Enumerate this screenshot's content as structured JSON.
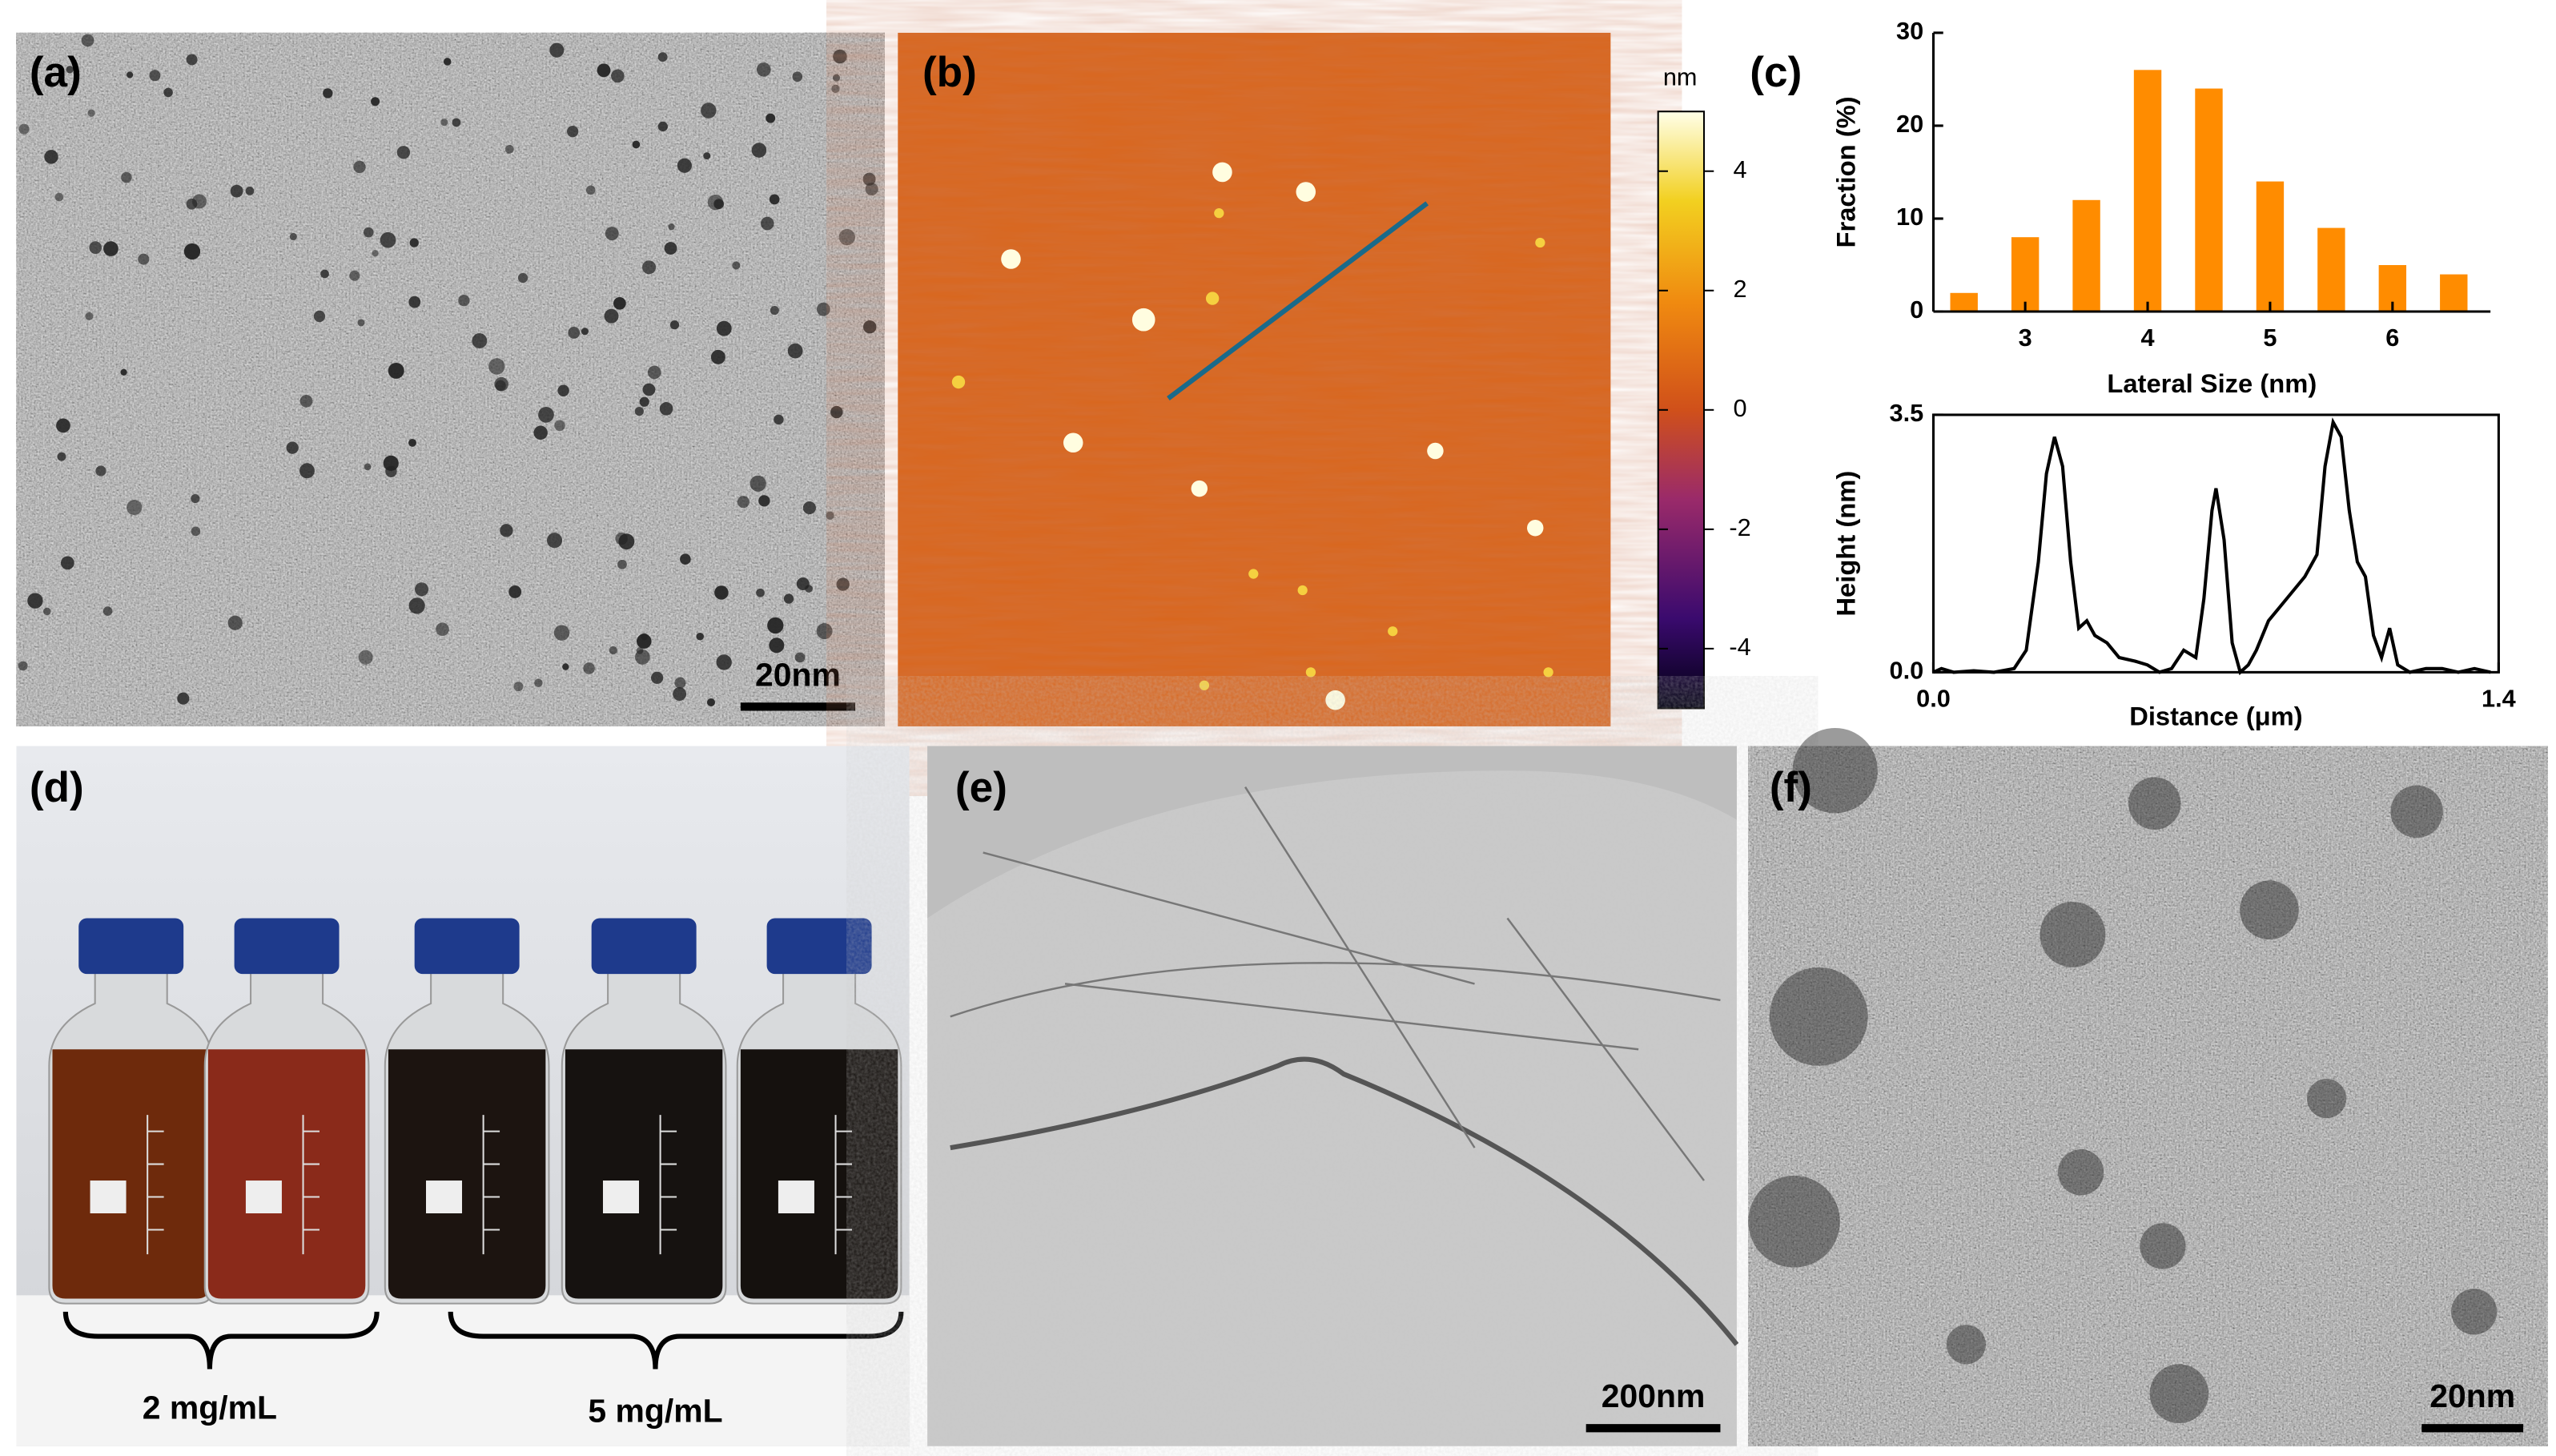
{
  "panels": {
    "a": {
      "label": "(a)",
      "scale_bar": "20nm"
    },
    "b": {
      "label": "(b)",
      "colorbar": {
        "unit": "nm",
        "lim": [
          -5,
          5
        ],
        "ticks": [
          4,
          2,
          0,
          -2,
          -4
        ]
      }
    },
    "c": {
      "label": "(c)"
    },
    "d": {
      "label": "(d)",
      "groups": [
        "2 mg/mL",
        "5 mg/mL"
      ]
    },
    "e": {
      "label": "(e)",
      "scale_bar": "200nm"
    },
    "f": {
      "label": "(f)",
      "scale_bar": "20nm"
    }
  },
  "chart_data": [
    {
      "type": "bar",
      "x": [
        2.5,
        3,
        3.5,
        4,
        4.5,
        5,
        5.5,
        6,
        6.5
      ],
      "values": [
        2,
        8,
        12,
        26,
        24,
        14,
        9,
        5,
        4
      ],
      "color": "#ff8c00",
      "xlabel": "Lateral Size (nm)",
      "ylabel": "Fraction (%)",
      "xlim": [
        2.25,
        6.8
      ],
      "xticks": [
        3,
        4,
        5,
        6
      ],
      "ylim": [
        0,
        30
      ],
      "yticks": [
        0,
        10,
        20,
        30
      ]
    },
    {
      "type": "line",
      "xlabel": "Distance (μm)",
      "ylabel": "Height (nm)",
      "color": "#000000",
      "x": [
        0,
        0.02,
        0.05,
        0.1,
        0.15,
        0.2,
        0.23,
        0.26,
        0.28,
        0.3,
        0.32,
        0.34,
        0.36,
        0.38,
        0.4,
        0.43,
        0.46,
        0.5,
        0.53,
        0.56,
        0.59,
        0.62,
        0.65,
        0.67,
        0.69,
        0.7,
        0.72,
        0.74,
        0.76,
        0.78,
        0.8,
        0.83,
        0.86,
        0.89,
        0.92,
        0.95,
        0.97,
        0.99,
        1.01,
        1.03,
        1.05,
        1.07,
        1.09,
        1.11,
        1.13,
        1.15,
        1.18,
        1.22,
        1.26,
        1.3,
        1.34,
        1.38
      ],
      "values": [
        0,
        0.05,
        0,
        0.02,
        0,
        0.05,
        0.3,
        1.5,
        2.7,
        3.2,
        2.8,
        1.5,
        0.6,
        0.7,
        0.5,
        0.4,
        0.2,
        0.15,
        0.1,
        0,
        0.05,
        0.3,
        0.2,
        1.0,
        2.2,
        2.5,
        1.8,
        0.4,
        0,
        0.1,
        0.3,
        0.7,
        0.9,
        1.1,
        1.3,
        1.6,
        2.8,
        3.4,
        3.2,
        2.2,
        1.5,
        1.3,
        0.5,
        0.2,
        0.6,
        0.1,
        0,
        0.05,
        0.05,
        0,
        0.05,
        0
      ],
      "xlim": [
        0,
        1.4
      ],
      "xticks": [
        {
          "value": 0,
          "label": "0.0"
        },
        {
          "value": 1.4,
          "label": "1.4"
        }
      ],
      "ylim": [
        0,
        3.5
      ],
      "yticks": [
        {
          "value": 0,
          "label": "0.0"
        },
        {
          "value": 3.5,
          "label": "3.5"
        }
      ]
    }
  ]
}
